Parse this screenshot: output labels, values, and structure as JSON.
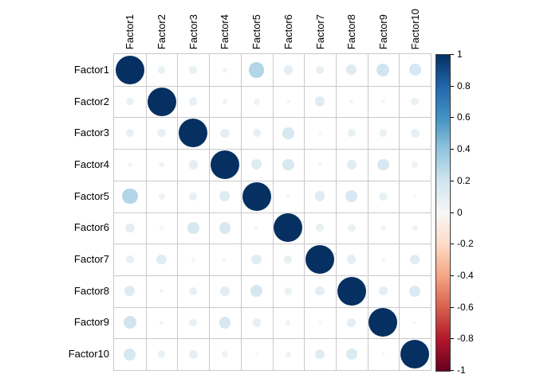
{
  "figure": {
    "background": "#ffffff"
  },
  "chart_data": {
    "type": "heatmap",
    "subtype": "correlation-circle-matrix",
    "title": "",
    "labels": [
      "Factor1",
      "Factor2",
      "Factor3",
      "Factor4",
      "Factor5",
      "Factor6",
      "Factor7",
      "Factor8",
      "Factor9",
      "Factor10"
    ],
    "matrix": [
      [
        1.0,
        0.07,
        0.07,
        0.03,
        0.3,
        0.1,
        0.08,
        0.13,
        0.2,
        0.18
      ],
      [
        0.07,
        1.0,
        0.08,
        0.03,
        0.05,
        0.02,
        0.12,
        0.02,
        0.02,
        0.07
      ],
      [
        0.07,
        0.08,
        1.0,
        0.1,
        0.08,
        0.17,
        0.02,
        0.08,
        0.07,
        0.09
      ],
      [
        0.03,
        0.03,
        0.1,
        1.0,
        0.13,
        0.17,
        0.02,
        0.11,
        0.17,
        0.05
      ],
      [
        0.3,
        0.05,
        0.08,
        0.13,
        1.0,
        0.02,
        0.12,
        0.17,
        0.08,
        0.01
      ],
      [
        0.1,
        0.02,
        0.17,
        0.17,
        0.02,
        1.0,
        0.08,
        0.07,
        0.03,
        0.04
      ],
      [
        0.08,
        0.12,
        0.02,
        0.02,
        0.12,
        0.08,
        1.0,
        0.1,
        0.02,
        0.12
      ],
      [
        0.13,
        0.02,
        0.08,
        0.11,
        0.17,
        0.07,
        0.1,
        1.0,
        0.1,
        0.15
      ],
      [
        0.2,
        0.02,
        0.07,
        0.17,
        0.08,
        0.03,
        0.02,
        0.1,
        1.0,
        0.01
      ],
      [
        0.18,
        0.07,
        0.09,
        0.05,
        0.01,
        0.04,
        0.12,
        0.15,
        0.01,
        1.0
      ]
    ],
    "value_range": [
      -1,
      1
    ],
    "grid": true,
    "grid_color": "#c9c9c9",
    "legend": {
      "position": "right",
      "tick_labels": [
        "1",
        "0.8",
        "0.6",
        "0.4",
        "0.2",
        "0",
        "-0.2",
        "-0.4",
        "-0.6",
        "-0.8",
        "-1"
      ],
      "tick_values": [
        1,
        0.8,
        0.6,
        0.4,
        0.2,
        0,
        -0.2,
        -0.4,
        -0.6,
        -0.8,
        -1
      ]
    },
    "palette": {
      "name": "RdBu (blue = positive, red = negative)",
      "stops": [
        {
          "v": -1.0,
          "c": "#67001F"
        },
        {
          "v": -0.8,
          "c": "#B2182B"
        },
        {
          "v": -0.6,
          "c": "#D6604D"
        },
        {
          "v": -0.4,
          "c": "#F4A582"
        },
        {
          "v": -0.2,
          "c": "#FDDBC7"
        },
        {
          "v": 0.0,
          "c": "#F7F7F7"
        },
        {
          "v": 0.2,
          "c": "#D1E5F0"
        },
        {
          "v": 0.4,
          "c": "#92C5DE"
        },
        {
          "v": 0.6,
          "c": "#4393C3"
        },
        {
          "v": 0.8,
          "c": "#2166AC"
        },
        {
          "v": 1.0,
          "c": "#053061"
        }
      ]
    }
  }
}
